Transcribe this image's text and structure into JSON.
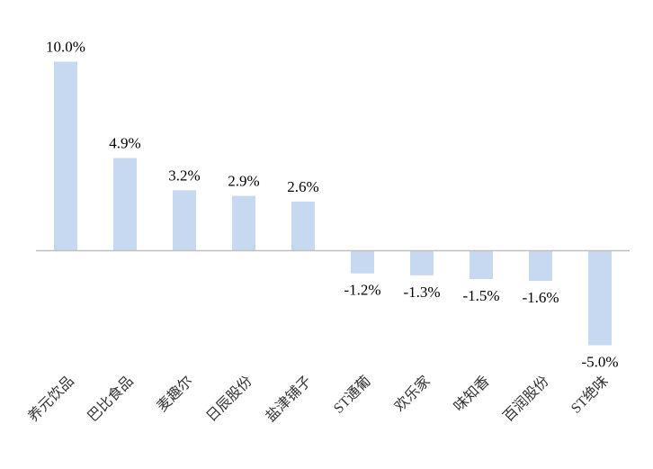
{
  "chart_data": {
    "type": "bar",
    "title": "",
    "xlabel": "",
    "ylabel": "",
    "categories": [
      "养元饮品",
      "巴比食品",
      "麦趣尔",
      "日辰股份",
      "盐津铺子",
      "ST通葡",
      "欢乐家",
      "味知香",
      "百润股份",
      "ST绝味"
    ],
    "values": [
      10.0,
      4.9,
      3.2,
      2.9,
      2.6,
      -1.2,
      -1.3,
      -1.5,
      -1.6,
      -5.0
    ],
    "data_labels": [
      "10.0%",
      "4.9%",
      "3.2%",
      "2.9%",
      "2.6%",
      "-1.2%",
      "-1.3%",
      "-1.5%",
      "-1.6%",
      "-5.0%"
    ],
    "ylim": [
      -6.0,
      10.0
    ],
    "grid": false,
    "legend": "none",
    "bar_color": "#c6d9f1",
    "axis_color": "#bfbfbf"
  }
}
